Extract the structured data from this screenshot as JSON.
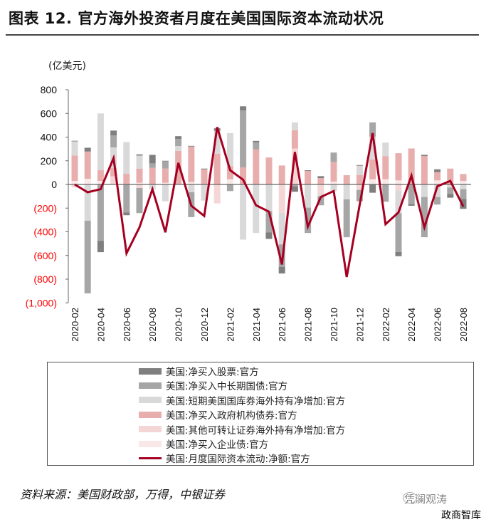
{
  "title": "图表 12. 官方海外投资者月度在美国国际资本流动状况",
  "source": "资料来源：美国财政部，万得，中银证券",
  "watermark": {
    "brand": "凭澜观涛",
    "sub": "政商智库"
  },
  "chart_data": {
    "type": "bar",
    "stacked": true,
    "title": "",
    "ylabel": "(亿美元)",
    "ylim": [
      -1000,
      800
    ],
    "yticks": [
      800,
      600,
      400,
      200,
      0,
      -200,
      -400,
      -600,
      -800,
      -1000
    ],
    "ytick_labels": [
      "800",
      "600",
      "400",
      "200",
      "0",
      "(200)",
      "(400)",
      "(600)",
      "(800)",
      "(1,000)"
    ],
    "negative_label_color": "#ff0000",
    "legend_position": "bottom",
    "categories": [
      "2020-02",
      "2020-03",
      "2020-04",
      "2020-05",
      "2020-06",
      "2020-07",
      "2020-08",
      "2020-09",
      "2020-10",
      "2020-11",
      "2020-12",
      "2021-01",
      "2021-02",
      "2021-03",
      "2021-04",
      "2021-05",
      "2021-06",
      "2021-07",
      "2021-08",
      "2021-09",
      "2021-10",
      "2021-11",
      "2021-12",
      "2022-01",
      "2022-02",
      "2022-03",
      "2022-04",
      "2022-05",
      "2022-06",
      "2022-07",
      "2022-08"
    ],
    "xtick_labels": [
      "2020-02",
      "2020-04",
      "2020-06",
      "2020-08",
      "2020-10",
      "2020-12",
      "2021-02",
      "2021-04",
      "2021-06",
      "2021-08",
      "2021-10",
      "2021-12",
      "2022-02",
      "2022-04",
      "2022-06",
      "2022-08"
    ],
    "series": [
      {
        "name": "美国:净买入股票:官方",
        "type": "bar",
        "color": "#7f7f7f",
        "values": [
          5,
          32,
          -96,
          40,
          -24,
          10,
          72,
          6,
          24,
          6,
          6,
          20,
          0,
          36,
          14,
          -54,
          -56,
          -46,
          6,
          16,
          4,
          0,
          6,
          -70,
          0,
          -36,
          -14,
          10,
          24,
          -32,
          -84
        ]
      },
      {
        "name": "美国:净买入中长期国债:官方",
        "type": "bar",
        "color": "#a6a6a6",
        "values": [
          0,
          -614,
          -476,
          102,
          -236,
          -212,
          38,
          60,
          60,
          -210,
          0,
          0,
          -56,
          480,
          60,
          -180,
          -190,
          -16,
          -214,
          -76,
          74,
          -320,
          -96,
          120,
          -146,
          -328,
          -166,
          -340,
          -64,
          -54,
          -82
        ]
      },
      {
        "name": "美国:短期美国国库券海外持有净增加:官方",
        "type": "bar",
        "color": "#d9d9d9",
        "values": [
          120,
          -306,
          480,
          175,
          268,
          110,
          -40,
          -142,
          40,
          -66,
          -136,
          194,
          280,
          -466,
          -410,
          -226,
          -266,
          66,
          -196,
          -20,
          -56,
          -126,
          78,
          194,
          114,
          -192,
          0,
          -106,
          -106,
          -26,
          -40
        ]
      },
      {
        "name": "美国:净买入政府机构债券:官方",
        "type": "bar",
        "color": "#e8aeae",
        "values": [
          214,
          230,
          90,
          70,
          90,
          120,
          140,
          120,
          284,
          300,
          128,
          260,
          110,
          144,
          294,
          228,
          160,
          154,
          114,
          54,
          166,
          78,
          80,
          166,
          196,
          230,
          304,
          240,
          70,
          134,
          58
        ]
      },
      {
        "name": "美国:其他可转让证券海外持有净增加:官方",
        "type": "bar",
        "color": "#f4d6d6",
        "values": [
          -25,
          0,
          0,
          68,
          0,
          -30,
          0,
          0,
          0,
          0,
          0,
          -160,
          0,
          0,
          0,
          0,
          -240,
          304,
          0,
          -80,
          0,
          0,
          -46,
          0,
          0,
          -50,
          0,
          0,
          0,
          0,
          0
        ]
      },
      {
        "name": "美国:净买入企业债:官方",
        "type": "bar",
        "color": "#fae8e8",
        "values": [
          30,
          48,
          30,
          0,
          0,
          14,
          0,
          14,
          0,
          20,
          0,
          0,
          44,
          0,
          0,
          0,
          0,
          0,
          0,
          0,
          24,
          0,
          0,
          44,
          44,
          34,
          0,
          0,
          34,
          0,
          30
        ]
      },
      {
        "name": "美国:月度国际资本流动:净额:官方",
        "type": "line",
        "color": "#a50021",
        "values": [
          0,
          -66,
          -40,
          222,
          -582,
          -362,
          -40,
          -404,
          182,
          -180,
          -266,
          484,
          120,
          40,
          -176,
          -230,
          -676,
          274,
          -356,
          -106,
          -56,
          -782,
          -174,
          434,
          -336,
          -236,
          74,
          -362,
          -16,
          30,
          -186
        ]
      }
    ]
  }
}
